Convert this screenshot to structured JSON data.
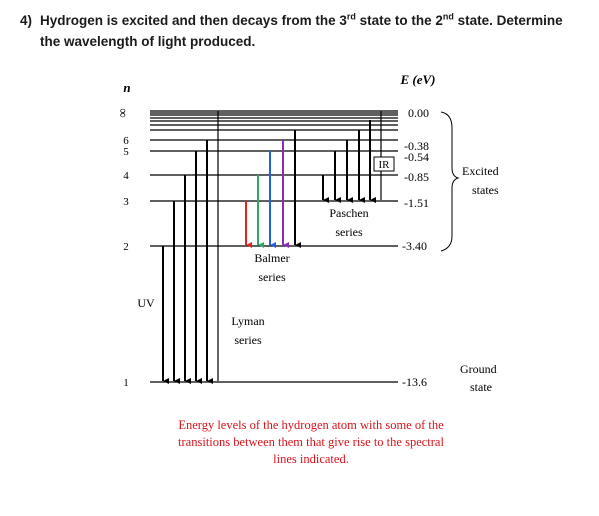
{
  "question": {
    "number": "4)",
    "before_n3": "Hydrogen is excited and then decays from the 3",
    "sup1": "rd",
    "mid": " state to the 2",
    "sup2": "nd",
    "after": " state.  Determine the wavelength of light produced."
  },
  "diagram": {
    "n_header": "n",
    "energy_header": "E (eV)",
    "n_labels": [
      "∞",
      "6",
      "5",
      "4",
      "3",
      "2",
      "1"
    ],
    "energy_labels": [
      "0.00",
      "-0.38",
      "-0.54",
      "-0.85",
      "-1.51",
      "-3.40",
      "-13.6"
    ],
    "series": {
      "paschen": [
        "Paschen",
        "series"
      ],
      "balmer": [
        "Balmer",
        "series"
      ],
      "lyman": [
        "Lyman",
        "series"
      ]
    },
    "uv_label": "UV",
    "ir_label": "IR",
    "excited": [
      "Excited",
      "states"
    ],
    "ground": [
      "Ground",
      "state"
    ],
    "caption": [
      "Energy levels of the hydrogen atom with some of the",
      "transitions between them that give rise to the spectral",
      "lines indicated."
    ],
    "balmer_colors": [
      "#e8201c",
      "#2aa86a",
      "#2060e0",
      "#8a2bb8",
      "#000000"
    ]
  }
}
